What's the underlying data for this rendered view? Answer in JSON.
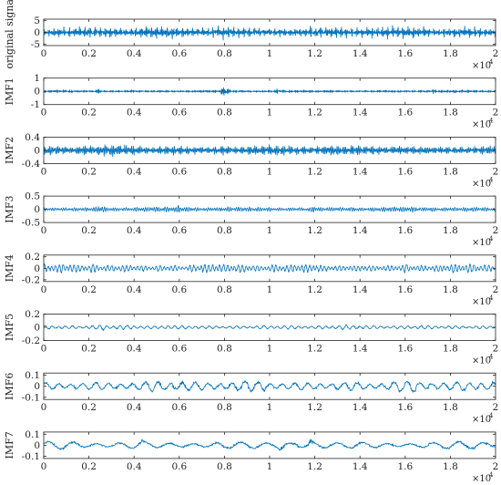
{
  "colors": {
    "signal": "#0072BD",
    "axis": "#262626",
    "background": "#ffffff"
  },
  "x_axis": {
    "ticks": [
      0,
      2000,
      4000,
      6000,
      8000,
      10000,
      12000,
      14000,
      16000,
      18000,
      20000
    ],
    "tick_labels": [
      "0",
      "0.2",
      "0.4",
      "0.6",
      "0.8",
      "1",
      "1.2",
      "1.4",
      "1.6",
      "1.8",
      "2"
    ],
    "multiplier_base": "×10",
    "multiplier_exponent": "4",
    "range": [
      0,
      20000
    ]
  },
  "chart_data": [
    {
      "type": "line",
      "ylabel": "original signal",
      "ylim": [
        -5.5,
        5.5
      ],
      "yticks": [
        5,
        0,
        -5
      ],
      "ytick_labels": [
        "5",
        "0",
        "-5"
      ],
      "amplitude": 2.2,
      "components": [
        [
          0.37,
          1.0
        ],
        [
          0.29,
          0.6
        ],
        [
          0.21,
          0.35
        ],
        [
          0.13,
          0.2
        ]
      ],
      "bursts": [
        [
          8000,
          1.3
        ]
      ],
      "x_range": [
        0,
        20000
      ]
    },
    {
      "type": "line",
      "ylabel": "IMF1",
      "ylim": [
        -1,
        1
      ],
      "yticks": [
        1,
        0,
        -1
      ],
      "ytick_labels": [
        "1",
        "0",
        "-1"
      ],
      "amplitude": 0.12,
      "components": [
        [
          0.43,
          1.0
        ],
        [
          0.37,
          0.5
        ]
      ],
      "bursts": [
        [
          2400,
          1.8
        ],
        [
          3800,
          1.5
        ],
        [
          8000,
          4.5
        ],
        [
          10300,
          1.6
        ],
        [
          12600,
          1.5
        ],
        [
          17200,
          1.4
        ]
      ],
      "x_range": [
        0,
        20000
      ]
    },
    {
      "type": "line",
      "ylabel": "IMF2",
      "ylim": [
        -0.4,
        0.4
      ],
      "yticks": [
        0.4,
        0,
        -0.4
      ],
      "ytick_labels": [
        "0.4",
        "0",
        "-0.4"
      ],
      "amplitude": 0.17,
      "components": [
        [
          0.29,
          1.0
        ],
        [
          0.23,
          0.5
        ]
      ],
      "bursts": [
        [
          8000,
          1.4
        ]
      ],
      "x_range": [
        0,
        20000
      ]
    },
    {
      "type": "line",
      "ylabel": "IMF3",
      "ylim": [
        -0.5,
        0.5
      ],
      "yticks": [
        0.5,
        0,
        -0.5
      ],
      "ytick_labels": [
        "0.5",
        "0",
        "-0.5"
      ],
      "amplitude": 0.11,
      "components": [
        [
          0.19,
          1.0
        ],
        [
          0.15,
          0.4
        ]
      ],
      "bursts": [
        [
          2500,
          1.7
        ],
        [
          6000,
          1.5
        ],
        [
          12000,
          1.6
        ]
      ],
      "x_range": [
        0,
        20000
      ]
    },
    {
      "type": "line",
      "ylabel": "IMF4",
      "ylim": [
        -0.23,
        0.23
      ],
      "yticks": [
        0.2,
        0,
        -0.2
      ],
      "ytick_labels": [
        "0.2",
        "0",
        "-0.2"
      ],
      "amplitude": 0.085,
      "components": [
        [
          0.11,
          1.0
        ],
        [
          0.085,
          0.4
        ]
      ],
      "bursts": [
        [
          2200,
          1.4
        ],
        [
          7000,
          1.3
        ],
        [
          16000,
          1.3
        ]
      ],
      "x_range": [
        0,
        20000
      ]
    },
    {
      "type": "line",
      "ylabel": "IMF5",
      "ylim": [
        -0.2,
        0.2
      ],
      "yticks": [
        0.2,
        0,
        -0.2
      ],
      "ytick_labels": [
        "0.2",
        "0",
        "-0.2"
      ],
      "amplitude": 0.04,
      "components": [
        [
          0.06,
          1.0
        ],
        [
          0.045,
          0.3
        ]
      ],
      "bursts": [
        [
          2600,
          1.5
        ],
        [
          5500,
          1.3
        ]
      ],
      "x_range": [
        0,
        20000
      ]
    },
    {
      "type": "line",
      "ylabel": "IMF6",
      "ylim": [
        -0.12,
        0.12
      ],
      "yticks": [
        0.1,
        0,
        -0.1
      ],
      "ytick_labels": [
        "0.1",
        "0",
        "-0.1"
      ],
      "amplitude": 0.06,
      "components": [
        [
          0.033,
          1.0
        ],
        [
          0.025,
          0.3
        ]
      ],
      "bursts": [
        [
          4900,
          1.4
        ],
        [
          9700,
          1.3
        ],
        [
          16400,
          1.3
        ]
      ],
      "x_range": [
        0,
        20000
      ]
    },
    {
      "type": "line",
      "ylabel": "IMF7",
      "ylim": [
        -0.12,
        0.12
      ],
      "yticks": [
        0.1,
        0,
        -0.1
      ],
      "ytick_labels": [
        "0.1",
        "0",
        "-0.1"
      ],
      "amplitude": 0.045,
      "components": [
        [
          0.017,
          1.0
        ],
        [
          0.013,
          0.3
        ]
      ],
      "bursts": [
        [
          4300,
          1.7
        ],
        [
          10500,
          1.6
        ],
        [
          11800,
          1.7
        ],
        [
          16900,
          1.4
        ]
      ],
      "x_range": [
        0,
        20000
      ]
    }
  ]
}
